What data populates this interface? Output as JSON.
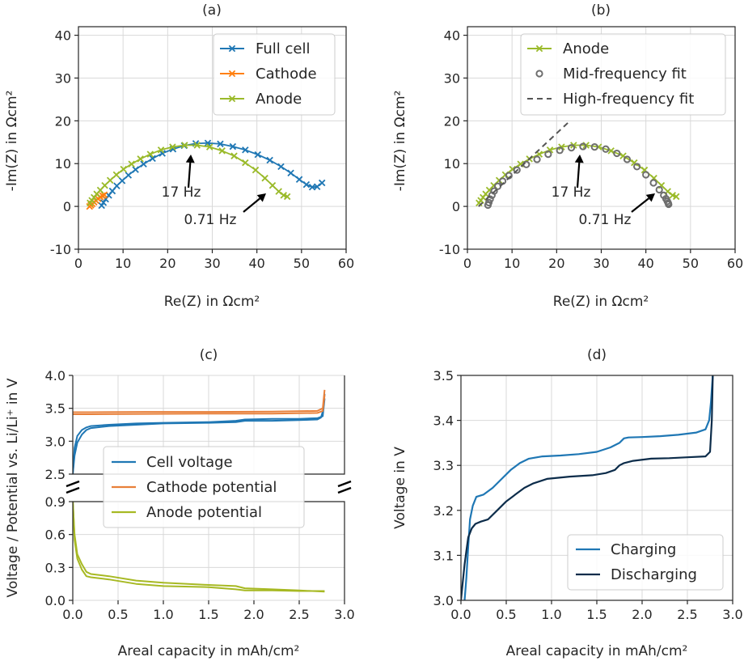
{
  "colors": {
    "full_cell": "#1f77b4",
    "cathode": "#ff7f0e",
    "anode": "#9aba2a",
    "fit_marker": "#6e6e6e",
    "hf_fit": "#555555",
    "cell_voltage": "#1f77b4",
    "cathode_potential": "#e8803a",
    "anode_potential": "#a7b923",
    "charging": "#1f77b4",
    "discharging": "#0c2c4a"
  },
  "chart_data": [
    {
      "id": "a",
      "type": "scatter",
      "title": "(a)",
      "xlabel": "Re(Z) in Ωcm²",
      "ylabel": "-Im(Z) in Ωcm²",
      "xlim": [
        0,
        60
      ],
      "ylim": [
        -10,
        42
      ],
      "xticks": [
        0,
        10,
        20,
        30,
        40,
        50,
        60
      ],
      "yticks": [
        -10,
        0,
        10,
        20,
        30,
        40
      ],
      "legend": "top-right",
      "series": [
        {
          "name": "Full cell",
          "color_key": "full_cell",
          "marker": "x",
          "x": [
            5.2,
            5.6,
            6.1,
            6.8,
            7.6,
            8.6,
            9.8,
            11.2,
            12.8,
            14.6,
            16.6,
            18.8,
            21.2,
            23.7,
            26.3,
            29.0,
            31.8,
            34.6,
            37.4,
            40.2,
            42.9,
            45.4,
            47.6,
            49.5,
            51.1,
            52.4,
            53.5,
            54.6
          ],
          "y": [
            0.2,
            0.9,
            1.7,
            2.6,
            3.6,
            4.8,
            6.0,
            7.3,
            8.6,
            9.9,
            11.2,
            12.4,
            13.4,
            14.2,
            14.7,
            14.8,
            14.6,
            14.0,
            13.2,
            12.1,
            10.8,
            9.3,
            7.8,
            6.3,
            5.1,
            4.5,
            4.6,
            5.5
          ]
        },
        {
          "name": "Cathode",
          "color_key": "cathode",
          "marker": "x",
          "x": [
            2.5,
            2.8,
            3.1,
            3.5,
            3.9,
            4.4,
            4.9,
            5.4,
            5.8
          ],
          "y": [
            0.0,
            0.3,
            0.6,
            1.0,
            1.4,
            1.8,
            2.2,
            2.5,
            2.7
          ]
        },
        {
          "name": "Anode",
          "color_key": "anode",
          "marker": "x",
          "x": [
            2.6,
            3.0,
            3.5,
            4.1,
            4.9,
            5.9,
            7.1,
            8.5,
            10.1,
            11.9,
            13.9,
            16.1,
            18.5,
            21.1,
            23.8,
            26.6,
            29.4,
            32.2,
            34.9,
            37.4,
            39.7,
            41.8,
            43.5,
            44.9,
            46.0,
            46.8
          ],
          "y": [
            0.8,
            1.4,
            2.1,
            2.9,
            3.8,
            4.9,
            6.1,
            7.4,
            8.7,
            9.9,
            11.1,
            12.2,
            13.2,
            13.9,
            14.3,
            14.3,
            13.9,
            13.0,
            11.8,
            10.2,
            8.5,
            6.6,
            4.9,
            3.5,
            2.6,
            2.3
          ]
        }
      ],
      "annotations": [
        {
          "text": "17 Hz",
          "x": 25.7,
          "y": 14.3
        },
        {
          "text": "0.71 Hz",
          "x": 42.3,
          "y": 2.8
        }
      ]
    },
    {
      "id": "b",
      "type": "scatter",
      "title": "(b)",
      "xlabel": "Re(Z) in Ωcm²",
      "ylabel": "-Im(Z) in Ωcm²",
      "xlim": [
        0,
        60
      ],
      "ylim": [
        -10,
        42
      ],
      "xticks": [
        0,
        10,
        20,
        30,
        40,
        50,
        60
      ],
      "yticks": [
        -10,
        0,
        10,
        20,
        30,
        40
      ],
      "legend": "top-right",
      "series": [
        {
          "name": "Anode",
          "color_key": "anode",
          "marker": "x-line",
          "x": [
            2.6,
            3.0,
            3.5,
            4.1,
            4.9,
            5.9,
            7.1,
            8.5,
            10.1,
            11.9,
            13.9,
            16.1,
            18.5,
            21.1,
            23.8,
            26.6,
            29.4,
            32.2,
            34.9,
            37.4,
            39.7,
            41.8,
            43.5,
            44.9,
            46.0,
            46.8
          ],
          "y": [
            0.8,
            1.4,
            2.1,
            2.9,
            3.8,
            4.9,
            6.1,
            7.4,
            8.7,
            9.9,
            11.1,
            12.2,
            13.2,
            13.9,
            14.3,
            14.3,
            13.9,
            13.0,
            11.8,
            10.2,
            8.5,
            6.6,
            4.9,
            3.5,
            2.6,
            2.3
          ]
        },
        {
          "name": "Mid-frequency fit",
          "color_key": "fit_marker",
          "marker": "o",
          "x": [
            4.6,
            4.8,
            5.1,
            5.5,
            6.0,
            6.8,
            7.9,
            9.3,
            11.1,
            13.2,
            15.6,
            18.1,
            20.7,
            23.3,
            25.9,
            28.5,
            31.0,
            33.5,
            35.8,
            38.0,
            40.0,
            41.7,
            43.0,
            44.0,
            44.5,
            44.8,
            45.0,
            45.1
          ],
          "y": [
            0.3,
            0.9,
            1.7,
            2.6,
            3.6,
            4.7,
            5.9,
            7.2,
            8.5,
            9.8,
            11.0,
            12.2,
            13.1,
            13.7,
            14.0,
            13.9,
            13.4,
            12.4,
            11.0,
            9.3,
            7.4,
            5.5,
            3.9,
            2.6,
            1.8,
            1.2,
            0.8,
            0.5
          ]
        },
        {
          "name": "High-frequency fit",
          "color_key": "hf_fit",
          "marker": "dashed",
          "x": [
            2.5,
            23.0
          ],
          "y": [
            0.0,
            20.0
          ]
        }
      ],
      "annotations": [
        {
          "text": "17 Hz",
          "x": 25.7,
          "y": 14.2
        },
        {
          "text": "0.71 Hz",
          "x": 43.8,
          "y": 5.3
        }
      ]
    },
    {
      "id": "c",
      "type": "line",
      "title": "(c)",
      "xlabel": "Areal capacity in mAh/cm²",
      "ylabel": "Voltage / Potential vs. Li/Li⁺ in V",
      "xlim": [
        0,
        3.0
      ],
      "xticks": [
        0.0,
        0.5,
        1.0,
        1.5,
        2.0,
        2.5,
        3.0
      ],
      "ylim_top": [
        2.5,
        4.0
      ],
      "yticks_top": [
        2.5,
        3.0,
        3.5,
        4.0
      ],
      "ylim_bottom": [
        0.0,
        0.9
      ],
      "yticks_bottom": [
        0.0,
        0.3,
        0.6,
        0.9
      ],
      "broken_axis": true,
      "legend": "center",
      "series": [
        {
          "name": "Cell voltage",
          "color_key": "cell_voltage",
          "panel": "top",
          "x": [
            0,
            0.02,
            0.05,
            0.1,
            0.15,
            0.2,
            0.4,
            0.7,
            1.0,
            1.5,
            1.8,
            1.9,
            2.2,
            2.5,
            2.7,
            2.74,
            2.76,
            2.78
          ],
          "y": [
            2.5,
            2.78,
            2.98,
            3.1,
            3.17,
            3.2,
            3.23,
            3.25,
            3.27,
            3.28,
            3.29,
            3.31,
            3.31,
            3.32,
            3.33,
            3.36,
            3.45,
            3.72
          ]
        },
        {
          "name": "Cell voltage",
          "color_key": "cell_voltage",
          "panel": "top",
          "x": [
            0,
            0.02,
            0.05,
            0.1,
            0.15,
            0.2,
            0.4,
            0.7,
            1.0,
            1.5,
            1.8,
            1.9,
            2.2,
            2.5,
            2.7,
            2.76,
            2.78
          ],
          "y": [
            2.5,
            2.9,
            3.08,
            3.17,
            3.21,
            3.23,
            3.25,
            3.27,
            3.28,
            3.29,
            3.31,
            3.33,
            3.34,
            3.34,
            3.35,
            3.38,
            3.65
          ]
        },
        {
          "name": "Cathode potential",
          "color_key": "cathode_potential",
          "panel": "top",
          "x": [
            0,
            0.2,
            0.8,
            1.5,
            2.2,
            2.7,
            2.76,
            2.78
          ],
          "y": [
            3.44,
            3.44,
            3.445,
            3.445,
            3.45,
            3.46,
            3.5,
            3.78
          ]
        },
        {
          "name": "Cathode potential",
          "color_key": "cathode_potential",
          "panel": "top",
          "x": [
            0,
            0.2,
            0.8,
            1.5,
            2.2,
            2.7,
            2.76,
            2.78
          ],
          "y": [
            3.41,
            3.41,
            3.415,
            3.42,
            3.42,
            3.43,
            3.46,
            3.7
          ]
        },
        {
          "name": "Anode potential",
          "color_key": "anode_potential",
          "panel": "bottom",
          "x": [
            0,
            0.02,
            0.05,
            0.1,
            0.15,
            0.2,
            0.4,
            0.7,
            1.0,
            1.5,
            1.8,
            1.9,
            2.2,
            2.5,
            2.78
          ],
          "y": [
            0.93,
            0.55,
            0.38,
            0.28,
            0.22,
            0.21,
            0.19,
            0.15,
            0.13,
            0.12,
            0.1,
            0.09,
            0.09,
            0.085,
            0.085
          ]
        },
        {
          "name": "Anode potential",
          "color_key": "anode_potential",
          "panel": "bottom",
          "x": [
            0,
            0.02,
            0.05,
            0.1,
            0.15,
            0.2,
            0.4,
            0.7,
            1.0,
            1.5,
            1.8,
            1.9,
            2.2,
            2.5,
            2.78
          ],
          "y": [
            0.9,
            0.6,
            0.42,
            0.33,
            0.26,
            0.24,
            0.22,
            0.18,
            0.16,
            0.14,
            0.13,
            0.11,
            0.1,
            0.09,
            0.08
          ]
        }
      ]
    },
    {
      "id": "d",
      "type": "line",
      "title": "(d)",
      "xlabel": "Areal capacity in mAh/cm²",
      "ylabel": "Voltage in V",
      "xlim": [
        0,
        3.0
      ],
      "ylim": [
        3.0,
        3.5
      ],
      "xticks": [
        0.0,
        0.5,
        1.0,
        1.5,
        2.0,
        2.5,
        3.0
      ],
      "yticks": [
        3.0,
        3.1,
        3.2,
        3.3,
        3.4,
        3.5
      ],
      "legend": "bottom-right",
      "series": [
        {
          "name": "Charging",
          "color_key": "charging",
          "x": [
            0.04,
            0.06,
            0.08,
            0.1,
            0.13,
            0.17,
            0.25,
            0.35,
            0.45,
            0.55,
            0.65,
            0.75,
            0.9,
            1.1,
            1.3,
            1.5,
            1.65,
            1.75,
            1.8,
            1.85,
            2.0,
            2.2,
            2.4,
            2.6,
            2.7,
            2.74,
            2.76,
            2.78
          ],
          "y": [
            3.0,
            3.05,
            3.12,
            3.18,
            3.21,
            3.23,
            3.235,
            3.25,
            3.27,
            3.29,
            3.305,
            3.315,
            3.32,
            3.322,
            3.325,
            3.33,
            3.34,
            3.35,
            3.36,
            3.362,
            3.363,
            3.365,
            3.368,
            3.373,
            3.38,
            3.4,
            3.44,
            3.5
          ]
        },
        {
          "name": "Discharging",
          "color_key": "discharging",
          "x": [
            0.0,
            0.02,
            0.04,
            0.06,
            0.08,
            0.12,
            0.16,
            0.22,
            0.3,
            0.4,
            0.5,
            0.6,
            0.7,
            0.8,
            0.95,
            1.2,
            1.45,
            1.6,
            1.7,
            1.75,
            1.8,
            1.9,
            2.1,
            2.3,
            2.5,
            2.7,
            2.75,
            2.77,
            2.78
          ],
          "y": [
            3.0,
            3.04,
            3.08,
            3.11,
            3.14,
            3.16,
            3.17,
            3.175,
            3.18,
            3.2,
            3.22,
            3.235,
            3.25,
            3.26,
            3.27,
            3.275,
            3.278,
            3.283,
            3.29,
            3.3,
            3.305,
            3.31,
            3.315,
            3.316,
            3.318,
            3.32,
            3.33,
            3.4,
            3.5
          ]
        }
      ]
    }
  ]
}
